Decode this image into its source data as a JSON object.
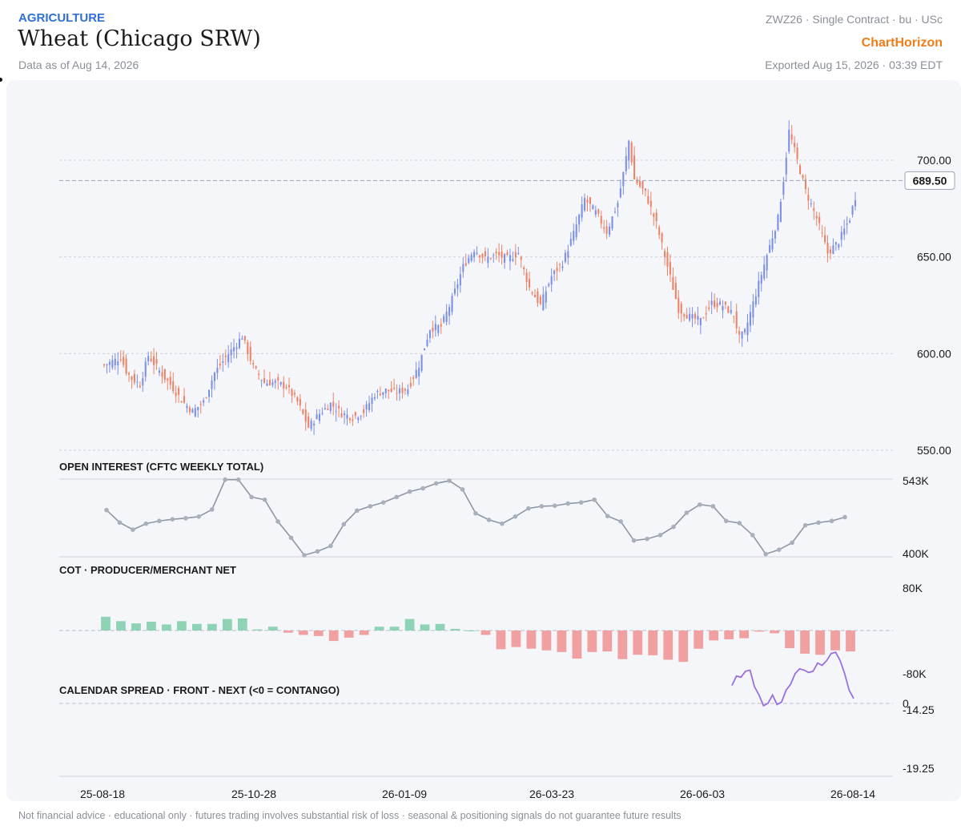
{
  "header": {
    "category": "AGRICULTURE",
    "title": "Wheat (Chicago SRW)",
    "as_of": "Data as of Aug 14, 2026",
    "contract": "ZWZ26 · Single Contract · bu · USc",
    "brand": "ChartHorizon",
    "exported": "Exported Aug 15, 2026 · 03:39 EDT"
  },
  "footer": "Not financial advice · educational only · futures trading involves substantial risk of loss · seasonal & positioning signals do not guarantee future results",
  "colors": {
    "up": "#7b8fe6",
    "down": "#ee8266",
    "oi_line": "#8e97a5",
    "cot_pos": "#8fd3b6",
    "cot_neg": "#f0a0a0",
    "spread": "#9a6fe0",
    "grid": "#cfd3da",
    "axis_text": "#1b1b1b"
  },
  "chart_data": [
    {
      "type": "candlestick",
      "ylim": [
        550,
        700
      ],
      "yticks": [
        "550.00",
        "600.00",
        "650.00",
        "700.00"
      ],
      "last_price_label": "689.50",
      "last_price": 689.5,
      "x_tick_labels": [
        "25-08-18",
        "25-10-28",
        "26-01-09",
        "26-03-23",
        "26-06-03",
        "26-08-14"
      ],
      "waypoints": [
        [
          0,
          594
        ],
        [
          6,
          598
        ],
        [
          8,
          591
        ],
        [
          10,
          587
        ],
        [
          13,
          584
        ],
        [
          16,
          599
        ],
        [
          20,
          591
        ],
        [
          24,
          584
        ],
        [
          28,
          576
        ],
        [
          32,
          570
        ],
        [
          36,
          575
        ],
        [
          40,
          590
        ],
        [
          44,
          598
        ],
        [
          48,
          605
        ],
        [
          50,
          609
        ],
        [
          54,
          593
        ],
        [
          58,
          585
        ],
        [
          62,
          585
        ],
        [
          66,
          583
        ],
        [
          70,
          575
        ],
        [
          74,
          562
        ],
        [
          78,
          569
        ],
        [
          82,
          574
        ],
        [
          86,
          569
        ],
        [
          90,
          567
        ],
        [
          94,
          570
        ],
        [
          98,
          579
        ],
        [
          102,
          581
        ],
        [
          106,
          580
        ],
        [
          110,
          582
        ],
        [
          114,
          594
        ],
        [
          118,
          613
        ],
        [
          122,
          614
        ],
        [
          126,
          628
        ],
        [
          130,
          645
        ],
        [
          134,
          654
        ],
        [
          138,
          649
        ],
        [
          142,
          651
        ],
        [
          146,
          649
        ],
        [
          150,
          652
        ],
        [
          154,
          634
        ],
        [
          158,
          625
        ],
        [
          162,
          640
        ],
        [
          166,
          647
        ],
        [
          170,
          662
        ],
        [
          174,
          680
        ],
        [
          178,
          673
        ],
        [
          182,
          663
        ],
        [
          186,
          678
        ],
        [
          188,
          693
        ],
        [
          190,
          710
        ],
        [
          192,
          690
        ],
        [
          196,
          683
        ],
        [
          200,
          667
        ],
        [
          204,
          645
        ],
        [
          208,
          623
        ],
        [
          212,
          619
        ],
        [
          216,
          617
        ],
        [
          220,
          626
        ],
        [
          224,
          625
        ],
        [
          228,
          620
        ],
        [
          230,
          608
        ],
        [
          232,
          611
        ],
        [
          236,
          631
        ],
        [
          240,
          651
        ],
        [
          244,
          670
        ],
        [
          246,
          690
        ],
        [
          248,
          715
        ],
        [
          250,
          705
        ],
        [
          254,
          684
        ],
        [
          258,
          670
        ],
        [
          262,
          652
        ],
        [
          266,
          658
        ],
        [
          270,
          670
        ],
        [
          272,
          681
        ]
      ]
    },
    {
      "type": "line",
      "title": "OPEN INTEREST (CFTC WEEKLY TOTAL)",
      "ylim": [
        400,
        543
      ],
      "ytick_labels": [
        "400K",
        "543K"
      ],
      "values": [
        486,
        463,
        450,
        461,
        466,
        469,
        471,
        474,
        487,
        542,
        542,
        510,
        505,
        465,
        435,
        403,
        410,
        420,
        460,
        485,
        493,
        500,
        510,
        520,
        526,
        535,
        540,
        524,
        480,
        468,
        461,
        474,
        489,
        493,
        494,
        498,
        500,
        505,
        475,
        465,
        430,
        433,
        440,
        455,
        481,
        496,
        493,
        466,
        462,
        440,
        405,
        413,
        426,
        458,
        463,
        466,
        473
      ]
    },
    {
      "type": "bar",
      "title": "COT · PRODUCER/MERCHANT NET",
      "ylim": [
        -80,
        80
      ],
      "ytick_labels": [
        "80K",
        "-80K"
      ],
      "values": [
        25,
        17,
        13,
        16,
        11,
        17,
        12,
        12,
        21,
        22,
        2,
        7,
        -4,
        -8,
        -10,
        -19,
        -13,
        -8,
        7,
        7,
        21,
        11,
        12,
        3,
        0,
        -8,
        -34,
        -30,
        -33,
        -36,
        -39,
        -51,
        -39,
        -38,
        -52,
        -44,
        -45,
        -53,
        -57,
        -33,
        -18,
        -16,
        -14,
        -2,
        -5,
        -32,
        -42,
        -44,
        -36,
        -38
      ]
    },
    {
      "type": "line",
      "title": "CALENDAR SPREAD · FRONT - NEXT (<0 = CONTANGO)",
      "ytick_labels": [
        "0",
        "-14.25",
        "-19.25"
      ],
      "ylim": [
        -19.25,
        -14.25
      ],
      "values": [
        -16.3,
        -17.1,
        -17.0,
        -17.5,
        -17.6,
        -16.2,
        -15.5,
        -14.6,
        -14.8,
        -15.5,
        -14.7,
        -14.9,
        -15.9,
        -16.4,
        -17.3,
        -17.7,
        -17.6,
        -17.4,
        -17.5,
        -18.2,
        -18.0,
        -18.4,
        -19.0,
        -19.1,
        -18.4,
        -17.3,
        -15.9,
        -15.2
      ]
    }
  ]
}
